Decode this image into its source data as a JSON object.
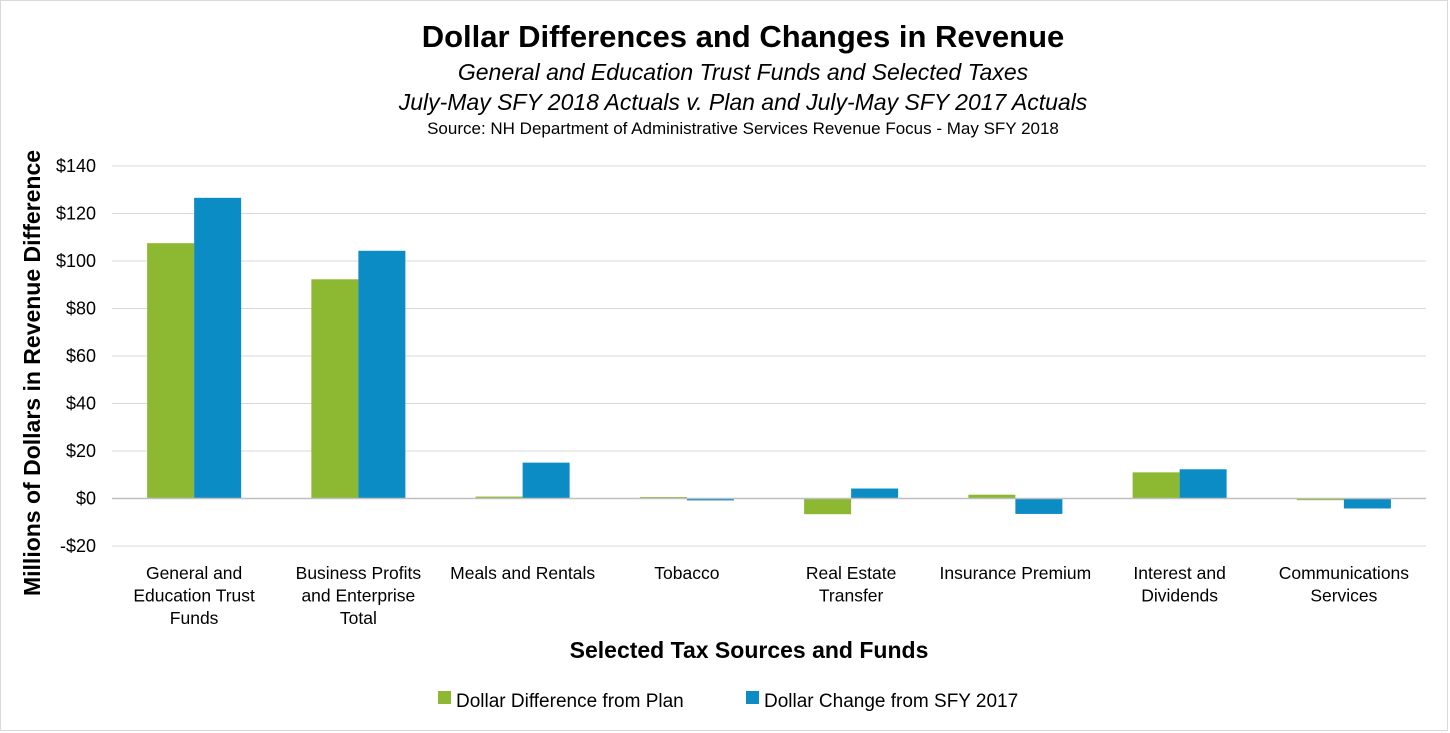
{
  "chart_data": {
    "type": "bar",
    "title": "Dollar Differences and Changes in Revenue",
    "subtitle_lines": [
      "General and Education Trust Funds and Selected Taxes",
      "July-May SFY 2018 Actuals v. Plan and July-May SFY 2017 Actuals"
    ],
    "source": "Source: NH Department of Administrative Services Revenue Focus - May SFY 2018",
    "xlabel": "Selected Tax Sources and Funds",
    "ylabel": "Millions of Dollars in Revenue Difference",
    "ylim": [
      -20,
      140
    ],
    "yticks": [
      -20,
      0,
      20,
      40,
      60,
      80,
      100,
      120,
      140
    ],
    "ytick_labels": [
      "-$20",
      "$0",
      "$20",
      "$40",
      "$60",
      "$80",
      "$100",
      "$120",
      "$140"
    ],
    "categories": [
      [
        "General and",
        "Education Trust",
        "Funds"
      ],
      [
        "Business Profits",
        "and Enterprise",
        "Total"
      ],
      [
        "Meals and Rentals"
      ],
      [
        "Tobacco"
      ],
      [
        "Real Estate",
        "Transfer"
      ],
      [
        "Insurance Premium"
      ],
      [
        "Interest and",
        "Dividends"
      ],
      [
        "Communications",
        "Services"
      ]
    ],
    "series": [
      {
        "name": "Dollar Difference from Plan",
        "color": "#8cb832",
        "values": [
          107.5,
          92.3,
          0.8,
          0.6,
          -6.6,
          1.6,
          11.0,
          -0.7
        ]
      },
      {
        "name": "Dollar Change from SFY 2017",
        "color": "#0c8cc4",
        "values": [
          126.6,
          104.3,
          15.1,
          -0.8,
          4.2,
          -6.5,
          12.3,
          -4.2
        ]
      }
    ],
    "grid": true,
    "legend_position": "bottom"
  }
}
